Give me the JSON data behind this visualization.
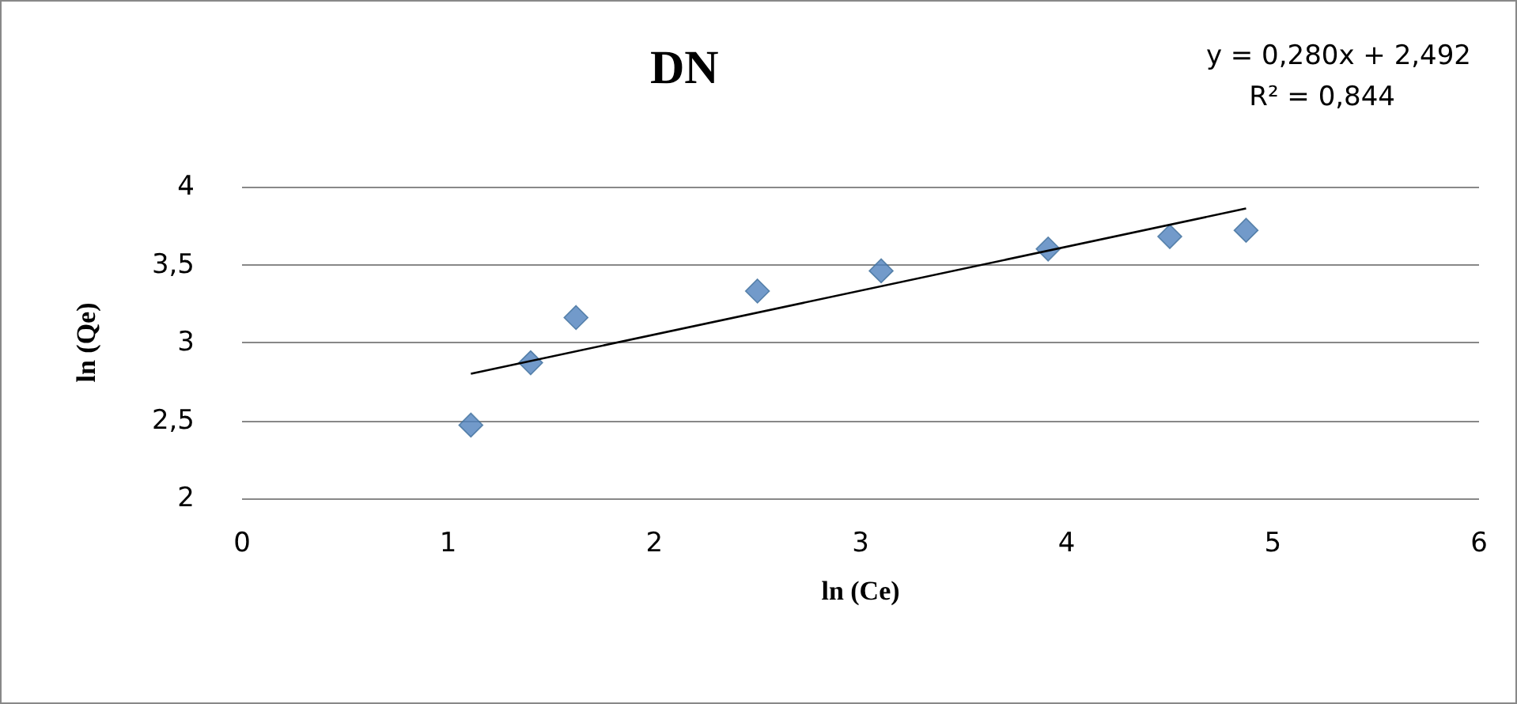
{
  "chart_data": {
    "type": "scatter",
    "title": "DN",
    "xlabel": "ln (Ce)",
    "ylabel": "ln (Qe)",
    "annotations": [
      "y = 0,280x + 2,492",
      "R² = 0,844"
    ],
    "series": [
      {
        "color": "#4f81bd",
        "marker": "diamond",
        "x": [
          1.11,
          1.4,
          1.62,
          2.5,
          3.1,
          3.91,
          4.5,
          4.87
        ],
        "values": [
          2.47,
          2.87,
          3.16,
          3.33,
          3.46,
          3.6,
          3.68,
          3.72
        ]
      },
      {
        "type": "line",
        "color": "#000000",
        "marker": "none",
        "line_style": "solid",
        "x": [
          1.11,
          4.87
        ],
        "values": [
          2.8,
          3.86
        ]
      }
    ],
    "xlim": [
      0,
      6
    ],
    "xticks": [
      0,
      1,
      2,
      3,
      4,
      5,
      6
    ],
    "ylim": [
      2,
      4
    ],
    "yticks": [
      2,
      {
        "value": 2.5,
        "label": "2,5"
      },
      3,
      {
        "value": 3.5,
        "label": "3,5"
      },
      4
    ],
    "grid": "y"
  }
}
